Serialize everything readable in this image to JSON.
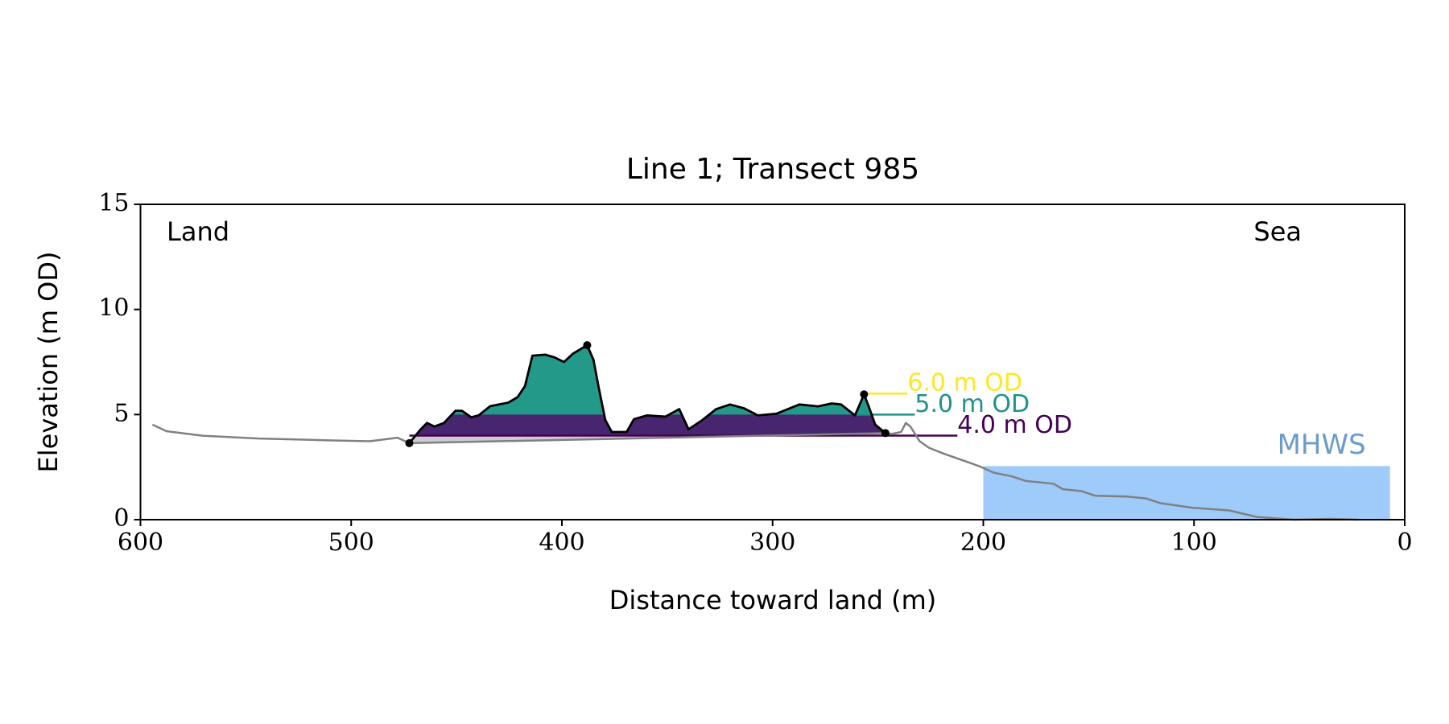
{
  "chart_data": {
    "type": "profile",
    "title": "Line 1; Transect 985",
    "xlabel": "Distance toward land (m)",
    "ylabel": "Elevation (m OD)",
    "annotations": [
      "Land",
      "Sea"
    ],
    "xlim": [
      600,
      0
    ],
    "ylim": [
      0,
      15
    ],
    "xticks": [
      600,
      500,
      400,
      300,
      200,
      100,
      0
    ],
    "yticks": [
      0,
      5,
      10,
      15
    ],
    "series": [
      {
        "name": "profile",
        "color": "#808080",
        "x": [
          594.3,
          587.7,
          570.2,
          543.9,
          508.8,
          491.2,
          478,
          472.4,
          246.5,
          243.4,
          239,
          236.8,
          234.6,
          230.2,
          225.8,
          219.3,
          210.5,
          201.8,
          195.2,
          186.4,
          179.8,
          166.7,
          162.3,
          153.5,
          146.9,
          131.6,
          122.8,
          116.2,
          100.9,
          83.3,
          70.2,
          52.6,
          35.1,
          21.9
        ],
        "values": [
          4.52,
          4.21,
          3.99,
          3.86,
          3.77,
          3.73,
          3.9,
          3.64,
          4.12,
          4.08,
          4.17,
          4.6,
          4.43,
          3.73,
          3.42,
          3.16,
          2.85,
          2.54,
          2.24,
          2.06,
          1.84,
          1.71,
          1.45,
          1.36,
          1.14,
          1.1,
          1.01,
          0.79,
          0.57,
          0.44,
          0.13,
          0,
          0.04,
          0
        ]
      },
      {
        "name": "dune",
        "color": "#000000",
        "x": [
          472.4,
          467,
          464,
          460.5,
          456,
          450.5,
          447.4,
          443,
          439.5,
          434,
          425.4,
          421,
          417.5,
          414,
          407.9,
          403.5,
          399,
          394.7,
          388,
          385,
          382.5,
          379.4,
          376.3,
          369.3,
          365.8,
          359.6,
          350.9,
          344.3,
          339.9,
          333.3,
          326.8,
          320.2,
          313.6,
          307,
          298.2,
          287.3,
          278.5,
          271.9,
          267.5,
          260.9,
          256.6,
          254.4,
          251.3,
          246.5
        ],
        "values": [
          3.64,
          4.3,
          4.6,
          4.43,
          4.6,
          5.18,
          5.18,
          4.87,
          4.96,
          5.4,
          5.57,
          5.83,
          6.36,
          7.8,
          7.85,
          7.72,
          7.5,
          7.9,
          8.3,
          7.6,
          6.27,
          4.74,
          4.17,
          4.17,
          4.78,
          4.96,
          4.9,
          5.26,
          4.3,
          4.74,
          5.26,
          5.48,
          5.3,
          4.96,
          5.04,
          5.48,
          5.39,
          5.53,
          5.48,
          4.96,
          5.96,
          5.39,
          4.52,
          4.12
        ]
      }
    ],
    "markers": {
      "x": [
        472.4,
        388,
        256.6,
        246.5
      ],
      "y": [
        3.64,
        8.3,
        5.96,
        4.12
      ]
    },
    "levels": [
      {
        "label": "4.0 m OD",
        "value": 4.0,
        "color": "#440154",
        "fill": "#47266f",
        "x": [
          472.4,
          212.3
        ]
      },
      {
        "label": "5.0 m OD",
        "value": 5.0,
        "color": "#21918c",
        "fill": "#23998a",
        "x": [
          261,
          232.5
        ]
      },
      {
        "label": "6.0 m OD",
        "value": 6.0,
        "color": "#fde725",
        "x": [
          256.6,
          236
        ]
      }
    ],
    "mhws": {
      "label": "MHWS",
      "value": 2.55,
      "color": "#9ecbfa",
      "label_color": "#6b9bcc",
      "x": [
        200,
        7
      ]
    }
  }
}
